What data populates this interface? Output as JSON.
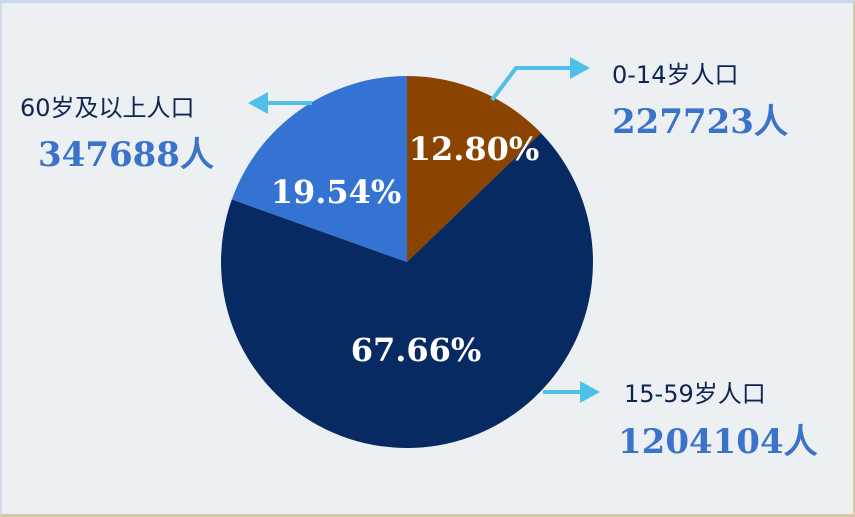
{
  "chart_data": {
    "type": "pie",
    "slices": [
      {
        "key": "children",
        "label": "0-14岁人口",
        "count": "227723人",
        "value": 12.8,
        "percent_text": "12.80%",
        "color": "#8b4300"
      },
      {
        "key": "working",
        "label": "15-59岁人口",
        "count": "1204104人",
        "value": 67.66,
        "percent_text": "67.66%",
        "color": "#082a63"
      },
      {
        "key": "elderly",
        "label": "60岁及以上人口",
        "count": "347688人",
        "value": 19.54,
        "percent_text": "19.54%",
        "color": "#3473d1"
      }
    ],
    "colors": {
      "background": "#ecf0f2",
      "arrow": "#4fc1e8",
      "label_text": "#0f2550",
      "count_text": "#3a73c9"
    }
  }
}
